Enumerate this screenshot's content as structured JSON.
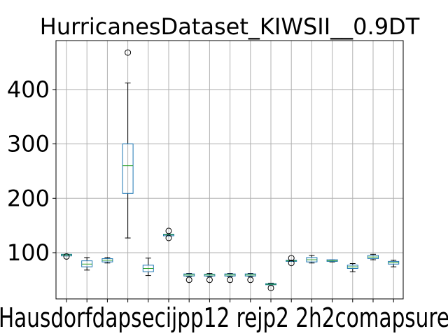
{
  "chart_data": {
    "type": "box",
    "title": "HurricanesDataset_KIWSII__0.9DT",
    "xlabel": "",
    "ylabel": "",
    "ylim": [
      15,
      490
    ],
    "yticks": [
      100,
      200,
      300,
      400
    ],
    "grid": true,
    "colors": {
      "box": "#1f77b4",
      "whisker": "#000000",
      "median": "#2ca02c",
      "flier": "#000000",
      "grid": "#b0b0b0"
    },
    "x_tick_labels_overlapping_visible_text": "Hausdorfdapsecijpp12 rejp2 2h2comapsure",
    "boxes": [
      {
        "label": "",
        "q1": 94,
        "median": 96,
        "q3": 97,
        "whislo": 94,
        "whishi": 97,
        "fliers": [
          93
        ]
      },
      {
        "label": "",
        "q1": 74,
        "median": 79,
        "q3": 85,
        "whislo": 68,
        "whishi": 91,
        "fliers": []
      },
      {
        "label": "",
        "q1": 83,
        "median": 86,
        "q3": 89,
        "whislo": 81,
        "whishi": 91,
        "fliers": []
      },
      {
        "label": "",
        "q1": 209,
        "median": 260,
        "q3": 300,
        "whislo": 127,
        "whishi": 412,
        "fliers": [
          468
        ]
      },
      {
        "label": "",
        "q1": 65,
        "median": 71,
        "q3": 77,
        "whislo": 58,
        "whishi": 90,
        "fliers": []
      },
      {
        "label": "",
        "q1": 131,
        "median": 133,
        "q3": 134,
        "whislo": 131,
        "whishi": 134,
        "fliers": [
          140,
          127
        ]
      },
      {
        "label": "",
        "q1": 57,
        "median": 59,
        "q3": 61,
        "whislo": 56,
        "whishi": 62,
        "fliers": [
          50
        ]
      },
      {
        "label": "",
        "q1": 57,
        "median": 59,
        "q3": 60,
        "whislo": 56,
        "whishi": 62,
        "fliers": [
          50
        ]
      },
      {
        "label": "",
        "q1": 57,
        "median": 59,
        "q3": 61,
        "whislo": 56,
        "whishi": 62,
        "fliers": [
          50
        ]
      },
      {
        "label": "",
        "q1": 57,
        "median": 59,
        "q3": 61,
        "whislo": 56,
        "whishi": 62,
        "fliers": [
          50
        ]
      },
      {
        "label": "",
        "q1": 41,
        "median": 42,
        "q3": 43,
        "whislo": 41,
        "whishi": 44,
        "fliers": [
          35
        ]
      },
      {
        "label": "",
        "q1": 84,
        "median": 85,
        "q3": 86,
        "whislo": 84,
        "whishi": 86,
        "fliers": [
          90,
          81
        ]
      },
      {
        "label": "",
        "q1": 83,
        "median": 87,
        "q3": 91,
        "whislo": 81,
        "whishi": 95,
        "fliers": []
      },
      {
        "label": "",
        "q1": 84,
        "median": 85,
        "q3": 87,
        "whislo": 83,
        "whishi": 87,
        "fliers": []
      },
      {
        "label": "",
        "q1": 71,
        "median": 74,
        "q3": 77,
        "whislo": 65,
        "whishi": 80,
        "fliers": []
      },
      {
        "label": "",
        "q1": 89,
        "median": 92,
        "q3": 95,
        "whislo": 87,
        "whishi": 97,
        "fliers": []
      },
      {
        "label": "",
        "q1": 79,
        "median": 82,
        "q3": 84,
        "whislo": 74,
        "whishi": 86,
        "fliers": []
      }
    ]
  }
}
